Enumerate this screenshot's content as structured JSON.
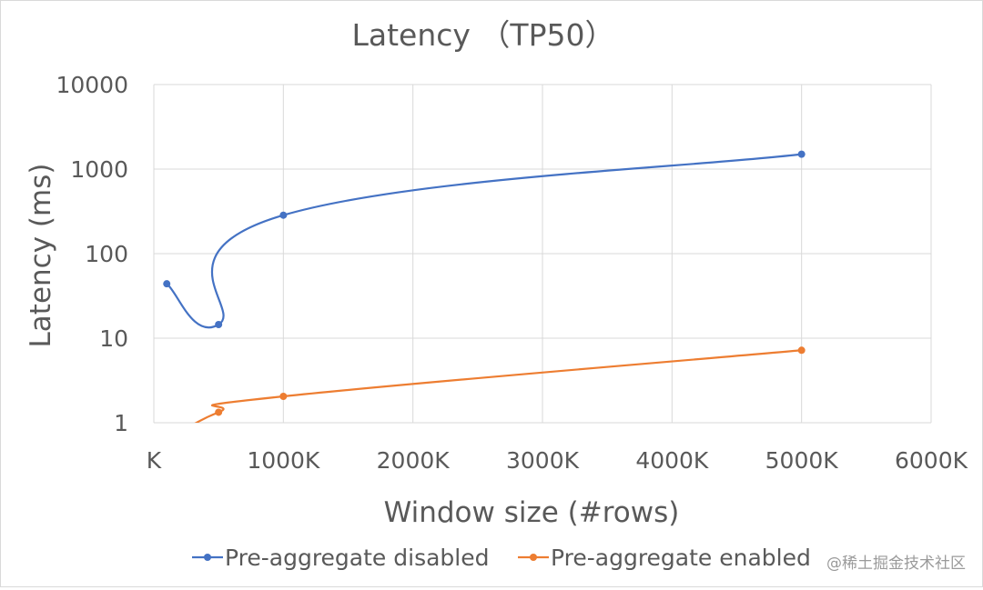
{
  "chart_data": {
    "type": "line",
    "title": "Latency （TP50）",
    "xlabel": "Window size (#rows)",
    "ylabel": "Latency (ms)",
    "x_scale": "linear",
    "y_scale": "log",
    "xlim": [
      0,
      6000
    ],
    "ylim": [
      1,
      10000
    ],
    "x_unit_suffix": "K",
    "x_ticks": [
      0,
      1000,
      2000,
      3000,
      4000,
      5000,
      6000
    ],
    "x_tick_labels": [
      "K",
      "1000K",
      "2000K",
      "3000K",
      "4000K",
      "5000K",
      "6000K"
    ],
    "y_ticks": [
      1,
      10,
      100,
      1000,
      10000
    ],
    "y_tick_labels": [
      "1",
      "10",
      "100",
      "1000",
      "10000"
    ],
    "grid": true,
    "smoothed": true,
    "legend_position": "bottom",
    "series": [
      {
        "name": "Pre-aggregate disabled",
        "color": "#4472C4",
        "points": [
          [
            100,
            44
          ],
          [
            500,
            14.5
          ],
          [
            1000,
            285
          ],
          [
            5000,
            1500
          ]
        ]
      },
      {
        "name": "Pre-aggregate enabled",
        "color": "#ED7D31",
        "points": [
          [
            100,
            0.6
          ],
          [
            500,
            1.33
          ],
          [
            1000,
            2.05
          ],
          [
            5000,
            7.2
          ]
        ]
      }
    ]
  },
  "watermark": "@稀土掘金技术社区"
}
